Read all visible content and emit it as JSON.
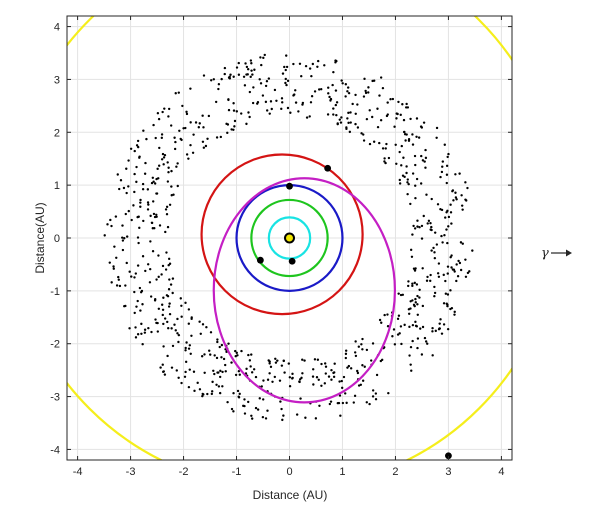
{
  "chart_data": {
    "type": "scatter",
    "title": "",
    "xlabel": "Distance (AU)",
    "ylabel": "Distance(AU)",
    "xlim": [
      -4.2,
      4.2
    ],
    "ylim": [
      -4.2,
      4.2
    ],
    "xticks": [
      -4,
      -3,
      -2,
      -1,
      0,
      1,
      2,
      3,
      4
    ],
    "yticks": [
      -4,
      -3,
      -2,
      -1,
      0,
      1,
      2,
      3,
      4
    ],
    "grid": true,
    "direction_marker": "γ",
    "sun": {
      "x": 0,
      "y": 0,
      "color": "#f2e600"
    },
    "orbits": [
      {
        "cx": 0,
        "cy": 0,
        "rx": 0.39,
        "ry": 0.39,
        "color": "#19e3e3"
      },
      {
        "cx": 0,
        "cy": 0,
        "rx": 0.72,
        "ry": 0.72,
        "color": "#1ec51e"
      },
      {
        "cx": 0,
        "cy": 0,
        "rx": 1.0,
        "ry": 1.0,
        "color": "#1a1ac7"
      },
      {
        "cx": -0.14,
        "cy": 0.07,
        "rx": 1.52,
        "ry": 1.51,
        "color": "#d41414"
      },
      {
        "cx": 0.28,
        "cy": -0.99,
        "rx": 1.71,
        "ry": 2.12,
        "color": "#c41fc4"
      },
      {
        "cx": -0.1,
        "cy": 0.45,
        "rx": 5.2,
        "ry": 5.2,
        "color": "#f5ee1c"
      }
    ],
    "bodies": [
      {
        "x": 0.0,
        "y": 0.98
      },
      {
        "x": 0.72,
        "y": 1.32
      },
      {
        "x": -0.55,
        "y": -0.42
      },
      {
        "x": 0.05,
        "y": -0.44
      },
      {
        "x": 3.0,
        "y": -4.12
      }
    ],
    "asteroid_belt": {
      "count": 900,
      "r_inner": 2.3,
      "r_outer": 3.5,
      "y_min": -3.45,
      "y_max": 3.55,
      "color": "#000000"
    }
  }
}
